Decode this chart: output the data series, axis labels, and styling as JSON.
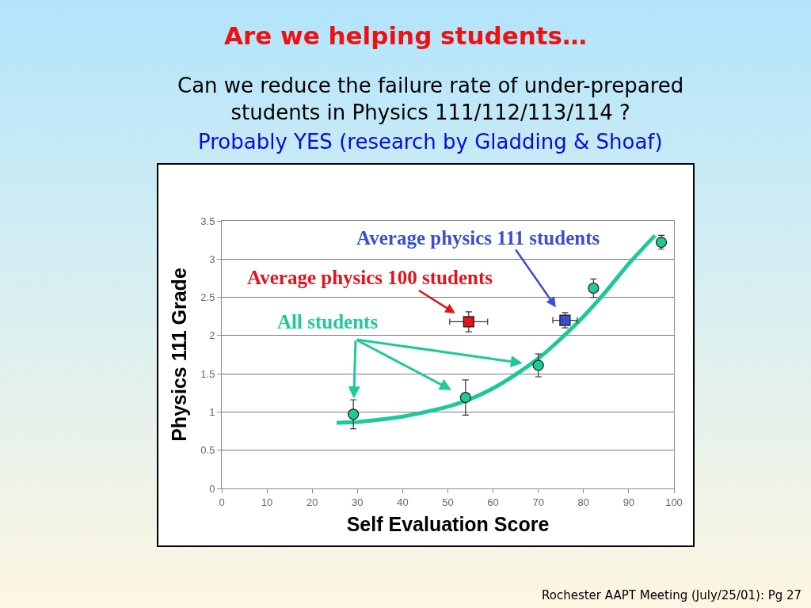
{
  "chart_data": {
    "type": "scatter",
    "title": "Are we helping students…",
    "subtitle": "Can we reduce the failure rate of under-prepared students in Physics 111/112/113/114 ?",
    "xlabel": "Self Evaluation Score",
    "ylabel": "Physics 111 Grade",
    "annotations": [
      "Probably YES (research by Gladding & Shoaf)",
      "Rochester AAPT Meeting (July/25/01): Pg 27"
    ],
    "xlim": [
      0,
      100
    ],
    "xticks": [
      0,
      10,
      20,
      30,
      40,
      50,
      60,
      70,
      80,
      90,
      100
    ],
    "ylim": [
      0,
      3.5
    ],
    "yticks": [
      0,
      0.5,
      1,
      1.5,
      2,
      2.5,
      3,
      3.5
    ],
    "grid": "y",
    "series": [
      {
        "name": "All students",
        "marker": "circle",
        "color": "#20c997",
        "x": [
          29.1,
          53.9,
          70.0,
          82.2,
          97.2
        ],
        "values": [
          0.97,
          1.19,
          1.61,
          2.62,
          3.22
        ],
        "errors": [
          0.19,
          0.23,
          0.15,
          0.12,
          0.09
        ]
      },
      {
        "name": "Average physics 100 students",
        "marker": "square",
        "color": "#e3121b",
        "x": [
          54.6
        ],
        "values": [
          2.18
        ],
        "errors": [
          0.13
        ],
        "xerrors": [
          4.2
        ]
      },
      {
        "name": "Average physics 111 students",
        "marker": "square",
        "color": "#3a4fd0",
        "x": [
          75.9
        ],
        "values": [
          2.2
        ],
        "errors": [
          0.1
        ],
        "xerrors": [
          2.7
        ]
      },
      {
        "type": "line",
        "marker": "none",
        "color": "#1dc99a",
        "x": [
          25.4,
          30,
          35,
          40,
          45,
          50,
          55,
          60,
          65,
          70,
          75,
          80,
          85,
          90,
          95.8
        ],
        "values": [
          0.86,
          0.87,
          0.9,
          0.94,
          1.0,
          1.07,
          1.17,
          1.31,
          1.49,
          1.7,
          1.96,
          2.25,
          2.58,
          2.94,
          3.31
        ]
      }
    ]
  }
}
